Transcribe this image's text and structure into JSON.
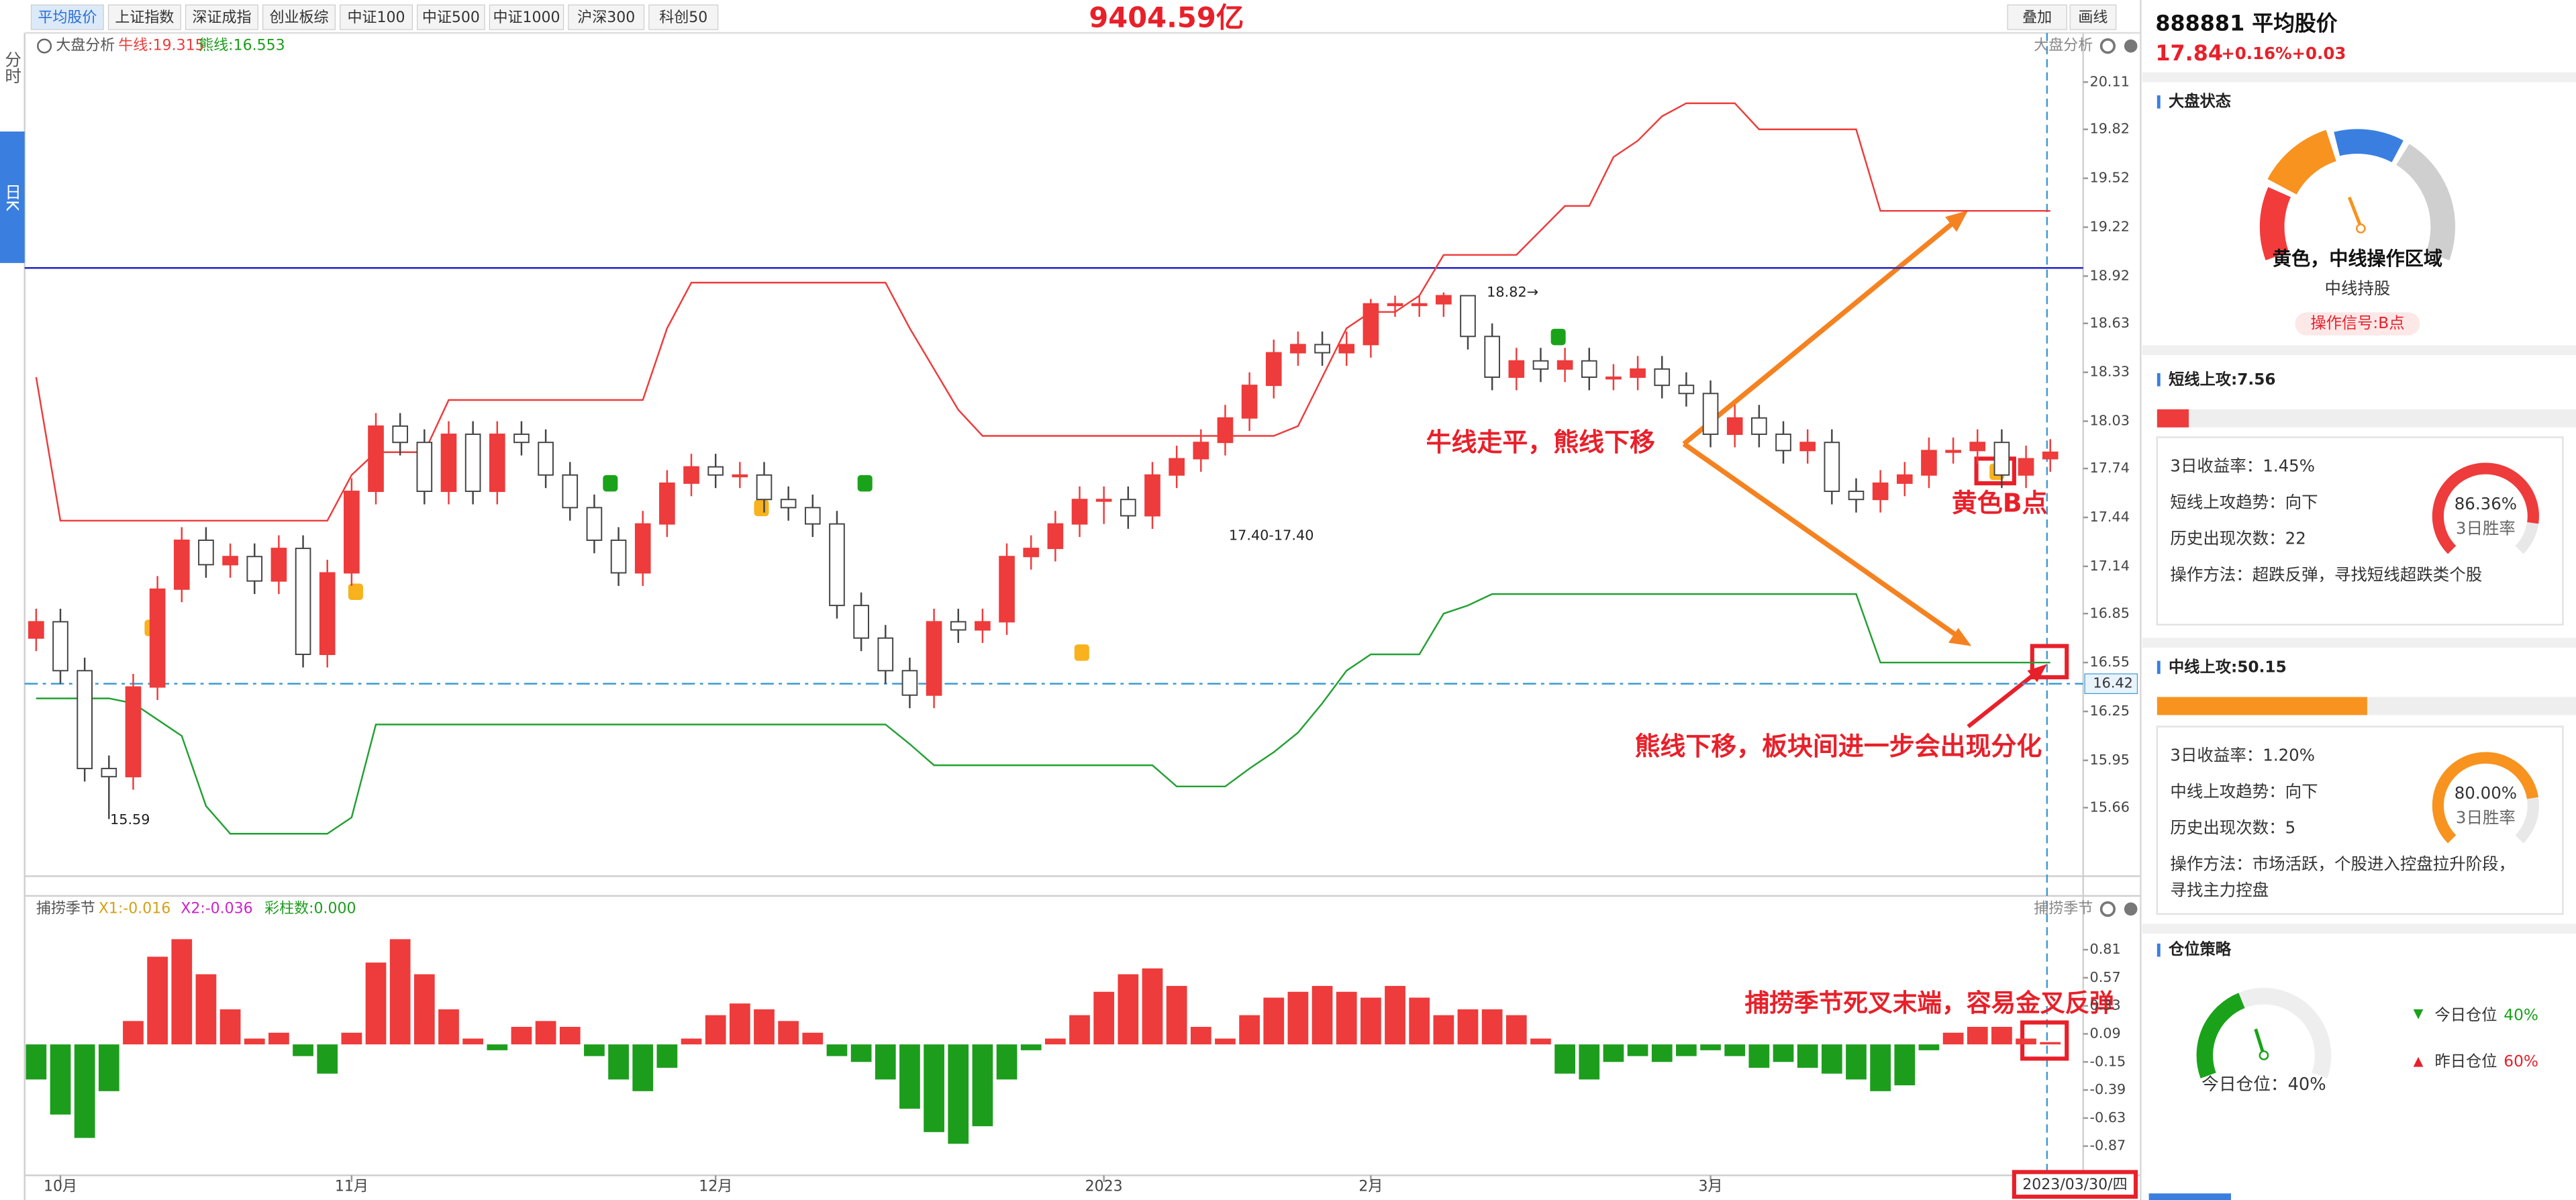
{
  "toolbar": {
    "tabs": [
      "平均股价",
      "上证指数",
      "深证成指",
      "创业板综",
      "中证100",
      "中证500",
      "中证1000",
      "沪深300",
      "科创50"
    ],
    "active": 0,
    "buttons": [
      "叠加",
      "画线"
    ]
  },
  "side_tabs": [
    "分时",
    "日K"
  ],
  "turnover": "9404.59亿",
  "date_label": "2023/03/30/四",
  "chart_data": [
    {
      "type": "candlestick",
      "title": "大盘分析",
      "legend": [
        "牛线:19.315",
        "熊线:16.553"
      ],
      "open": [
        16.7,
        16.8,
        16.5,
        15.9,
        15.85,
        16.4,
        17.0,
        17.3,
        17.15,
        17.2,
        17.05,
        17.25,
        16.6,
        17.1,
        17.6,
        18.0,
        17.9,
        17.6,
        17.95,
        17.6,
        17.95,
        17.9,
        17.7,
        17.5,
        17.3,
        17.1,
        17.4,
        17.65,
        17.75,
        17.7,
        17.7,
        17.55,
        17.5,
        17.4,
        16.9,
        16.7,
        16.5,
        16.35,
        16.8,
        16.75,
        16.8,
        17.2,
        17.25,
        17.4,
        17.55,
        17.55,
        17.45,
        17.7,
        17.8,
        17.9,
        18.05,
        18.25,
        18.45,
        18.5,
        18.45,
        18.5,
        18.75,
        18.75,
        18.75,
        18.8,
        18.55,
        18.3,
        18.4,
        18.35,
        18.4,
        18.3,
        18.3,
        18.35,
        18.25,
        18.2,
        17.95,
        18.05,
        17.95,
        17.85,
        17.9,
        17.6,
        17.55,
        17.65,
        17.7,
        17.85,
        17.85,
        17.9,
        17.7,
        17.8
      ],
      "high": [
        16.88,
        16.88,
        16.58,
        15.98,
        16.48,
        17.08,
        17.38,
        17.38,
        17.28,
        17.28,
        17.33,
        17.33,
        17.18,
        17.68,
        18.08,
        18.08,
        17.98,
        18.03,
        18.03,
        18.03,
        18.03,
        17.98,
        17.78,
        17.58,
        17.38,
        17.48,
        17.73,
        17.83,
        17.83,
        17.78,
        17.78,
        17.63,
        17.58,
        17.48,
        16.98,
        16.78,
        16.58,
        16.88,
        16.88,
        16.88,
        17.28,
        17.33,
        17.48,
        17.63,
        17.63,
        17.63,
        17.78,
        17.88,
        17.98,
        18.13,
        18.33,
        18.53,
        18.58,
        18.58,
        18.58,
        18.78,
        18.8,
        18.8,
        18.82,
        18.8,
        18.63,
        18.48,
        18.48,
        18.48,
        18.48,
        18.38,
        18.43,
        18.43,
        18.33,
        18.28,
        18.13,
        18.13,
        18.03,
        17.98,
        17.98,
        17.68,
        17.73,
        17.78,
        17.93,
        17.93,
        17.98,
        17.98,
        17.88,
        17.92
      ],
      "low": [
        16.62,
        16.42,
        15.82,
        15.59,
        15.77,
        16.32,
        16.92,
        17.07,
        17.07,
        16.97,
        16.97,
        16.52,
        16.52,
        17.02,
        17.52,
        17.82,
        17.52,
        17.52,
        17.52,
        17.52,
        17.82,
        17.62,
        17.42,
        17.22,
        17.02,
        17.02,
        17.32,
        17.57,
        17.62,
        17.62,
        17.47,
        17.42,
        17.32,
        16.82,
        16.62,
        16.42,
        16.27,
        16.27,
        16.67,
        16.67,
        16.72,
        17.12,
        17.17,
        17.32,
        17.4,
        17.37,
        17.37,
        17.62,
        17.72,
        17.82,
        17.97,
        18.17,
        18.37,
        18.37,
        18.37,
        18.42,
        18.67,
        18.67,
        18.67,
        18.47,
        18.22,
        18.22,
        18.27,
        18.27,
        18.22,
        18.22,
        18.22,
        18.17,
        18.12,
        17.87,
        17.87,
        17.87,
        17.77,
        17.77,
        17.52,
        17.47,
        17.47,
        17.57,
        17.62,
        17.77,
        17.77,
        17.62,
        17.62,
        17.72
      ],
      "close": [
        16.8,
        16.5,
        15.9,
        15.85,
        16.4,
        17.0,
        17.3,
        17.15,
        17.2,
        17.05,
        17.25,
        16.6,
        17.1,
        17.6,
        18.0,
        17.9,
        17.6,
        17.95,
        17.6,
        17.95,
        17.9,
        17.7,
        17.5,
        17.3,
        17.1,
        17.4,
        17.65,
        17.75,
        17.7,
        17.7,
        17.55,
        17.5,
        17.4,
        16.9,
        16.7,
        16.5,
        16.35,
        16.8,
        16.75,
        16.8,
        17.2,
        17.25,
        17.4,
        17.55,
        17.55,
        17.45,
        17.7,
        17.8,
        17.9,
        18.05,
        18.25,
        18.45,
        18.5,
        18.45,
        18.5,
        18.75,
        18.75,
        18.75,
        18.8,
        18.55,
        18.3,
        18.4,
        18.35,
        18.4,
        18.3,
        18.3,
        18.35,
        18.25,
        18.2,
        17.95,
        18.05,
        17.95,
        17.85,
        17.9,
        17.6,
        17.55,
        17.65,
        17.7,
        17.85,
        17.85,
        17.9,
        17.7,
        17.8,
        17.84
      ],
      "up_color": "#ee3b3b",
      "down_color": "#ffffff",
      "down_stroke": "#444444",
      "bull_line": {
        "color": "#ee3b3b",
        "values": [
          18.3,
          17.42,
          17.42,
          17.42,
          17.42,
          17.42,
          17.42,
          17.42,
          17.42,
          17.42,
          17.42,
          17.42,
          17.42,
          17.7,
          17.84,
          17.84,
          17.84,
          18.16,
          18.16,
          18.16,
          18.16,
          18.16,
          18.16,
          18.16,
          18.16,
          18.16,
          18.6,
          18.88,
          18.88,
          18.88,
          18.88,
          18.88,
          18.88,
          18.88,
          18.88,
          18.88,
          18.6,
          18.35,
          18.1,
          17.94,
          17.94,
          17.94,
          17.94,
          17.94,
          17.94,
          17.94,
          17.94,
          17.94,
          17.94,
          17.94,
          17.94,
          17.94,
          18.0,
          18.3,
          18.6,
          18.7,
          18.7,
          18.8,
          19.05,
          19.05,
          19.05,
          19.05,
          19.2,
          19.35,
          19.35,
          19.65,
          19.75,
          19.9,
          19.98,
          19.98,
          19.98,
          19.82,
          19.82,
          19.82,
          19.82,
          19.82,
          19.32,
          19.32,
          19.32,
          19.32,
          19.32,
          19.32,
          19.32,
          19.32
        ]
      },
      "bear_line": {
        "color": "#22a033",
        "values": [
          16.33,
          16.33,
          16.33,
          16.33,
          16.3,
          16.2,
          16.1,
          15.67,
          15.5,
          15.5,
          15.5,
          15.5,
          15.5,
          15.6,
          16.17,
          16.17,
          16.17,
          16.17,
          16.17,
          16.17,
          16.17,
          16.17,
          16.17,
          16.17,
          16.17,
          16.17,
          16.17,
          16.17,
          16.17,
          16.17,
          16.17,
          16.17,
          16.17,
          16.17,
          16.17,
          16.17,
          16.05,
          15.92,
          15.92,
          15.92,
          15.92,
          15.92,
          15.92,
          15.92,
          15.92,
          15.92,
          15.92,
          15.79,
          15.79,
          15.79,
          15.9,
          16.0,
          16.12,
          16.3,
          16.5,
          16.6,
          16.6,
          16.6,
          16.85,
          16.9,
          16.97,
          16.97,
          16.97,
          16.97,
          16.97,
          16.97,
          16.97,
          16.97,
          16.97,
          16.97,
          16.97,
          16.97,
          16.97,
          16.97,
          16.97,
          16.97,
          16.55,
          16.55,
          16.55,
          16.55,
          16.55,
          16.55,
          16.55,
          16.55
        ]
      },
      "levels": [
        {
          "value": 18.97,
          "color": "#2323c8",
          "dashed": false,
          "labeled": false
        },
        {
          "value": 16.42,
          "color": "#3d9bd6",
          "dashed": true,
          "labeled": true
        }
      ],
      "annotations": [
        "18.82→",
        "17.40-17.40",
        "15.59"
      ],
      "ylim": [
        15.27,
        20.21
      ],
      "yticks": [
        20.11,
        19.82,
        19.52,
        19.22,
        18.92,
        18.63,
        18.33,
        18.03,
        17.74,
        17.44,
        17.14,
        16.85,
        16.55,
        16.25,
        15.95,
        15.66
      ],
      "xticks": [
        {
          "value": 1,
          "label": "10月"
        },
        {
          "value": 13,
          "label": "11月"
        },
        {
          "value": 28,
          "label": "12月"
        },
        {
          "value": 44,
          "label": "2023"
        },
        {
          "value": 55,
          "label": "2月"
        },
        {
          "value": 69,
          "label": "3月"
        }
      ]
    },
    {
      "type": "bar",
      "title": "捕捞季节",
      "legend": [
        "X1:-0.016",
        "X2:-0.036",
        "彩柱数:0.000"
      ],
      "values": [
        -0.3,
        -0.6,
        -0.8,
        -0.4,
        0.2,
        0.75,
        0.9,
        0.6,
        0.3,
        0.05,
        0.1,
        -0.1,
        -0.25,
        0.1,
        0.7,
        0.9,
        0.6,
        0.3,
        0.05,
        -0.05,
        0.15,
        0.2,
        0.15,
        -0.1,
        -0.3,
        -0.4,
        -0.2,
        0.05,
        0.25,
        0.35,
        0.3,
        0.2,
        0.1,
        -0.1,
        -0.15,
        -0.3,
        -0.55,
        -0.75,
        -0.85,
        -0.7,
        -0.3,
        -0.05,
        0.05,
        0.25,
        0.45,
        0.6,
        0.65,
        0.5,
        0.15,
        0.05,
        0.25,
        0.4,
        0.45,
        0.5,
        0.45,
        0.4,
        0.5,
        0.4,
        0.25,
        0.3,
        0.3,
        0.25,
        0.05,
        -0.25,
        -0.3,
        -0.15,
        -0.1,
        -0.15,
        -0.1,
        -0.05,
        -0.1,
        -0.2,
        -0.15,
        -0.2,
        -0.25,
        -0.3,
        -0.4,
        -0.35,
        -0.05,
        0.1,
        0.15,
        0.15,
        0.05,
        0.02
      ],
      "pos_color": "#ee3b3b",
      "neg_color": "#1c9e1c",
      "ylim": [
        -1.12,
        1.2
      ],
      "yticks": [
        0.81,
        0.57,
        0.33,
        0.09,
        -0.15,
        -0.39,
        -0.63,
        -0.87
      ]
    }
  ],
  "overlay_notes": [
    "牛线走平，熊线下移",
    "黄色B点",
    "熊线下移，板块间进一步会出现分化",
    "捕捞季节死叉末端，容易金叉反弹"
  ],
  "panel": {
    "code_name": "888881 平均股价",
    "price": 17.84,
    "change_pct": "+0.16%",
    "change": "+0.03",
    "market": {
      "title": "大盘状态",
      "state": "黄色，中线操作区域",
      "advice": "中线持股",
      "signal": "操作信号:B点"
    },
    "short": {
      "title": "短线上攻:",
      "score": 7.56,
      "color": "#ee3b3b",
      "lines": [
        "3日收益率：1.45%",
        "短线上攻趋势：向下",
        "历史出现次数：22",
        "操作方法：超跌反弹，寻找短线超跌类个股"
      ],
      "win_rate": {
        "value": 86.36,
        "label": "86.36%"
      },
      "win_rate_name": "3日胜率"
    },
    "mid": {
      "title": "中线上攻:",
      "score": 50.15,
      "color": "#f7931e",
      "lines": [
        "3日收益率：1.20%",
        "中线上攻趋势：向下",
        "历史出现次数：5",
        "操作方法：市场活跃，个股进入控盘拉升阶段，",
        "寻找主力控盘"
      ],
      "win_rate": {
        "value": 80.0,
        "label": "80.00%"
      },
      "win_rate_name": "3日胜率"
    },
    "position": {
      "title": "仓位策略",
      "gauge_label": "今日仓位：40%",
      "color": "#1aa31a",
      "today": {
        "name": "今日仓位",
        "value": 40,
        "label": "40%"
      },
      "yesterday": {
        "name": "昨日仓位",
        "label": "60%"
      }
    }
  }
}
